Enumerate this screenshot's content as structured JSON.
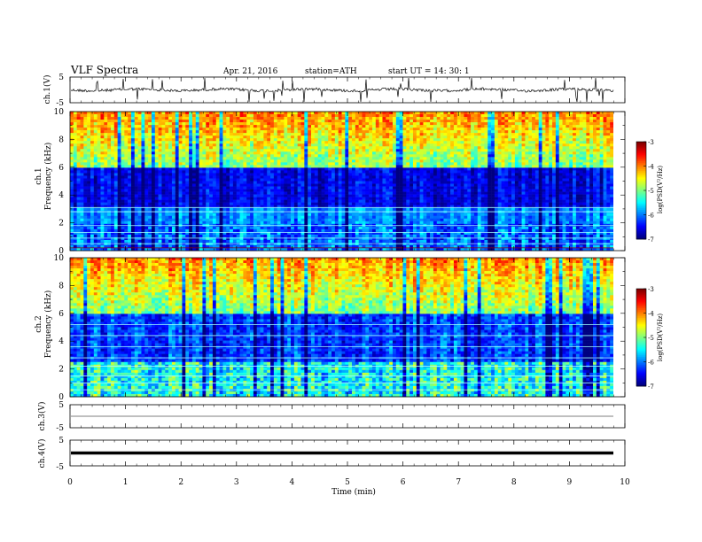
{
  "header": {
    "title": "VLF  Spectra",
    "date": "Apr. 21, 2016",
    "station": "station=ATH",
    "start": "start  UT  =   14: 30: 1"
  },
  "chart_data": [
    {
      "type": "line",
      "panel": "ch1-waveform",
      "ylabel": "ch.1(V)",
      "ylim": [
        -5,
        5
      ],
      "yticks": [
        "5",
        "-5"
      ],
      "xlim": [
        0,
        10
      ]
    },
    {
      "type": "heatmap",
      "panel": "ch1-spectrogram",
      "ylabel": "ch.1\nFrequency  (kHz)",
      "ylabel_lines": [
        "ch.1",
        "Frequency  (kHz)"
      ],
      "ylim": [
        0,
        10
      ],
      "yticks": [
        "0",
        "2",
        "4",
        "6",
        "8",
        "10"
      ],
      "xlim": [
        0,
        10
      ],
      "colorbar": {
        "label": "log(PSD(V²/Hz)",
        "range": [
          -7,
          -3
        ],
        "ticks": [
          "-3",
          "-4",
          "-5",
          "-6",
          "-7"
        ]
      }
    },
    {
      "type": "heatmap",
      "panel": "ch2-spectrogram",
      "ylabel_lines": [
        "ch.2",
        "Frequency  (kHz)"
      ],
      "ylim": [
        0,
        10
      ],
      "yticks": [
        "0",
        "2",
        "4",
        "6",
        "8",
        "10"
      ],
      "xlim": [
        0,
        10
      ],
      "colorbar": {
        "label": "log(PSD(V²/Hz)",
        "range": [
          -7,
          -3
        ],
        "ticks": [
          "-3",
          "-4",
          "-5",
          "-6",
          "-7"
        ]
      }
    },
    {
      "type": "line",
      "panel": "ch3-waveform",
      "ylabel": "ch.3(V)",
      "ylim": [
        -5,
        5
      ],
      "yticks": [
        "5",
        "-5"
      ],
      "xlim": [
        0,
        10
      ]
    },
    {
      "type": "line",
      "panel": "ch4-waveform",
      "ylabel": "ch.4(V)",
      "ylim": [
        -5,
        5
      ],
      "yticks": [
        "5",
        "-5"
      ],
      "xlim": [
        0,
        10
      ]
    }
  ],
  "xaxis": {
    "label": "Time  (min)",
    "ticks": [
      "0",
      "1",
      "2",
      "3",
      "4",
      "5",
      "6",
      "7",
      "8",
      "9",
      "10"
    ]
  }
}
